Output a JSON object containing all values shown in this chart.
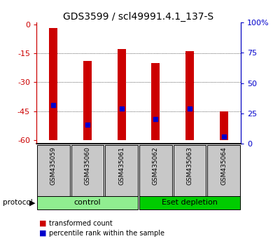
{
  "title": "GDS3599 / scl49991.4.1_137-S",
  "samples": [
    "GSM435059",
    "GSM435060",
    "GSM435061",
    "GSM435062",
    "GSM435063",
    "GSM435064"
  ],
  "bar_tops": [
    -2.0,
    -19.0,
    -13.0,
    -20.0,
    -14.0,
    -45.0
  ],
  "bar_bottom": -60,
  "percentile_ranks": [
    0.3,
    0.13,
    0.27,
    0.18,
    0.27,
    0.03
  ],
  "ylim_left": [
    -62,
    1
  ],
  "ylim_right": [
    0,
    100
  ],
  "yticks_left": [
    0,
    -15,
    -30,
    -45,
    -60
  ],
  "yticks_right": [
    0,
    25,
    50,
    75,
    100
  ],
  "bar_color": "#cc0000",
  "percentile_color": "#0000cc",
  "sample_label_bg": "#c8c8c8",
  "control_color": "#90ee90",
  "eset_color": "#00cc00",
  "legend_items": [
    {
      "label": "transformed count",
      "color": "#cc0000"
    },
    {
      "label": "percentile rank within the sample",
      "color": "#0000cc"
    }
  ],
  "left_ylabel_color": "#cc0000",
  "right_ylabel_color": "#0000cc",
  "title_fontsize": 10,
  "tick_fontsize": 8,
  "bar_width": 0.25
}
